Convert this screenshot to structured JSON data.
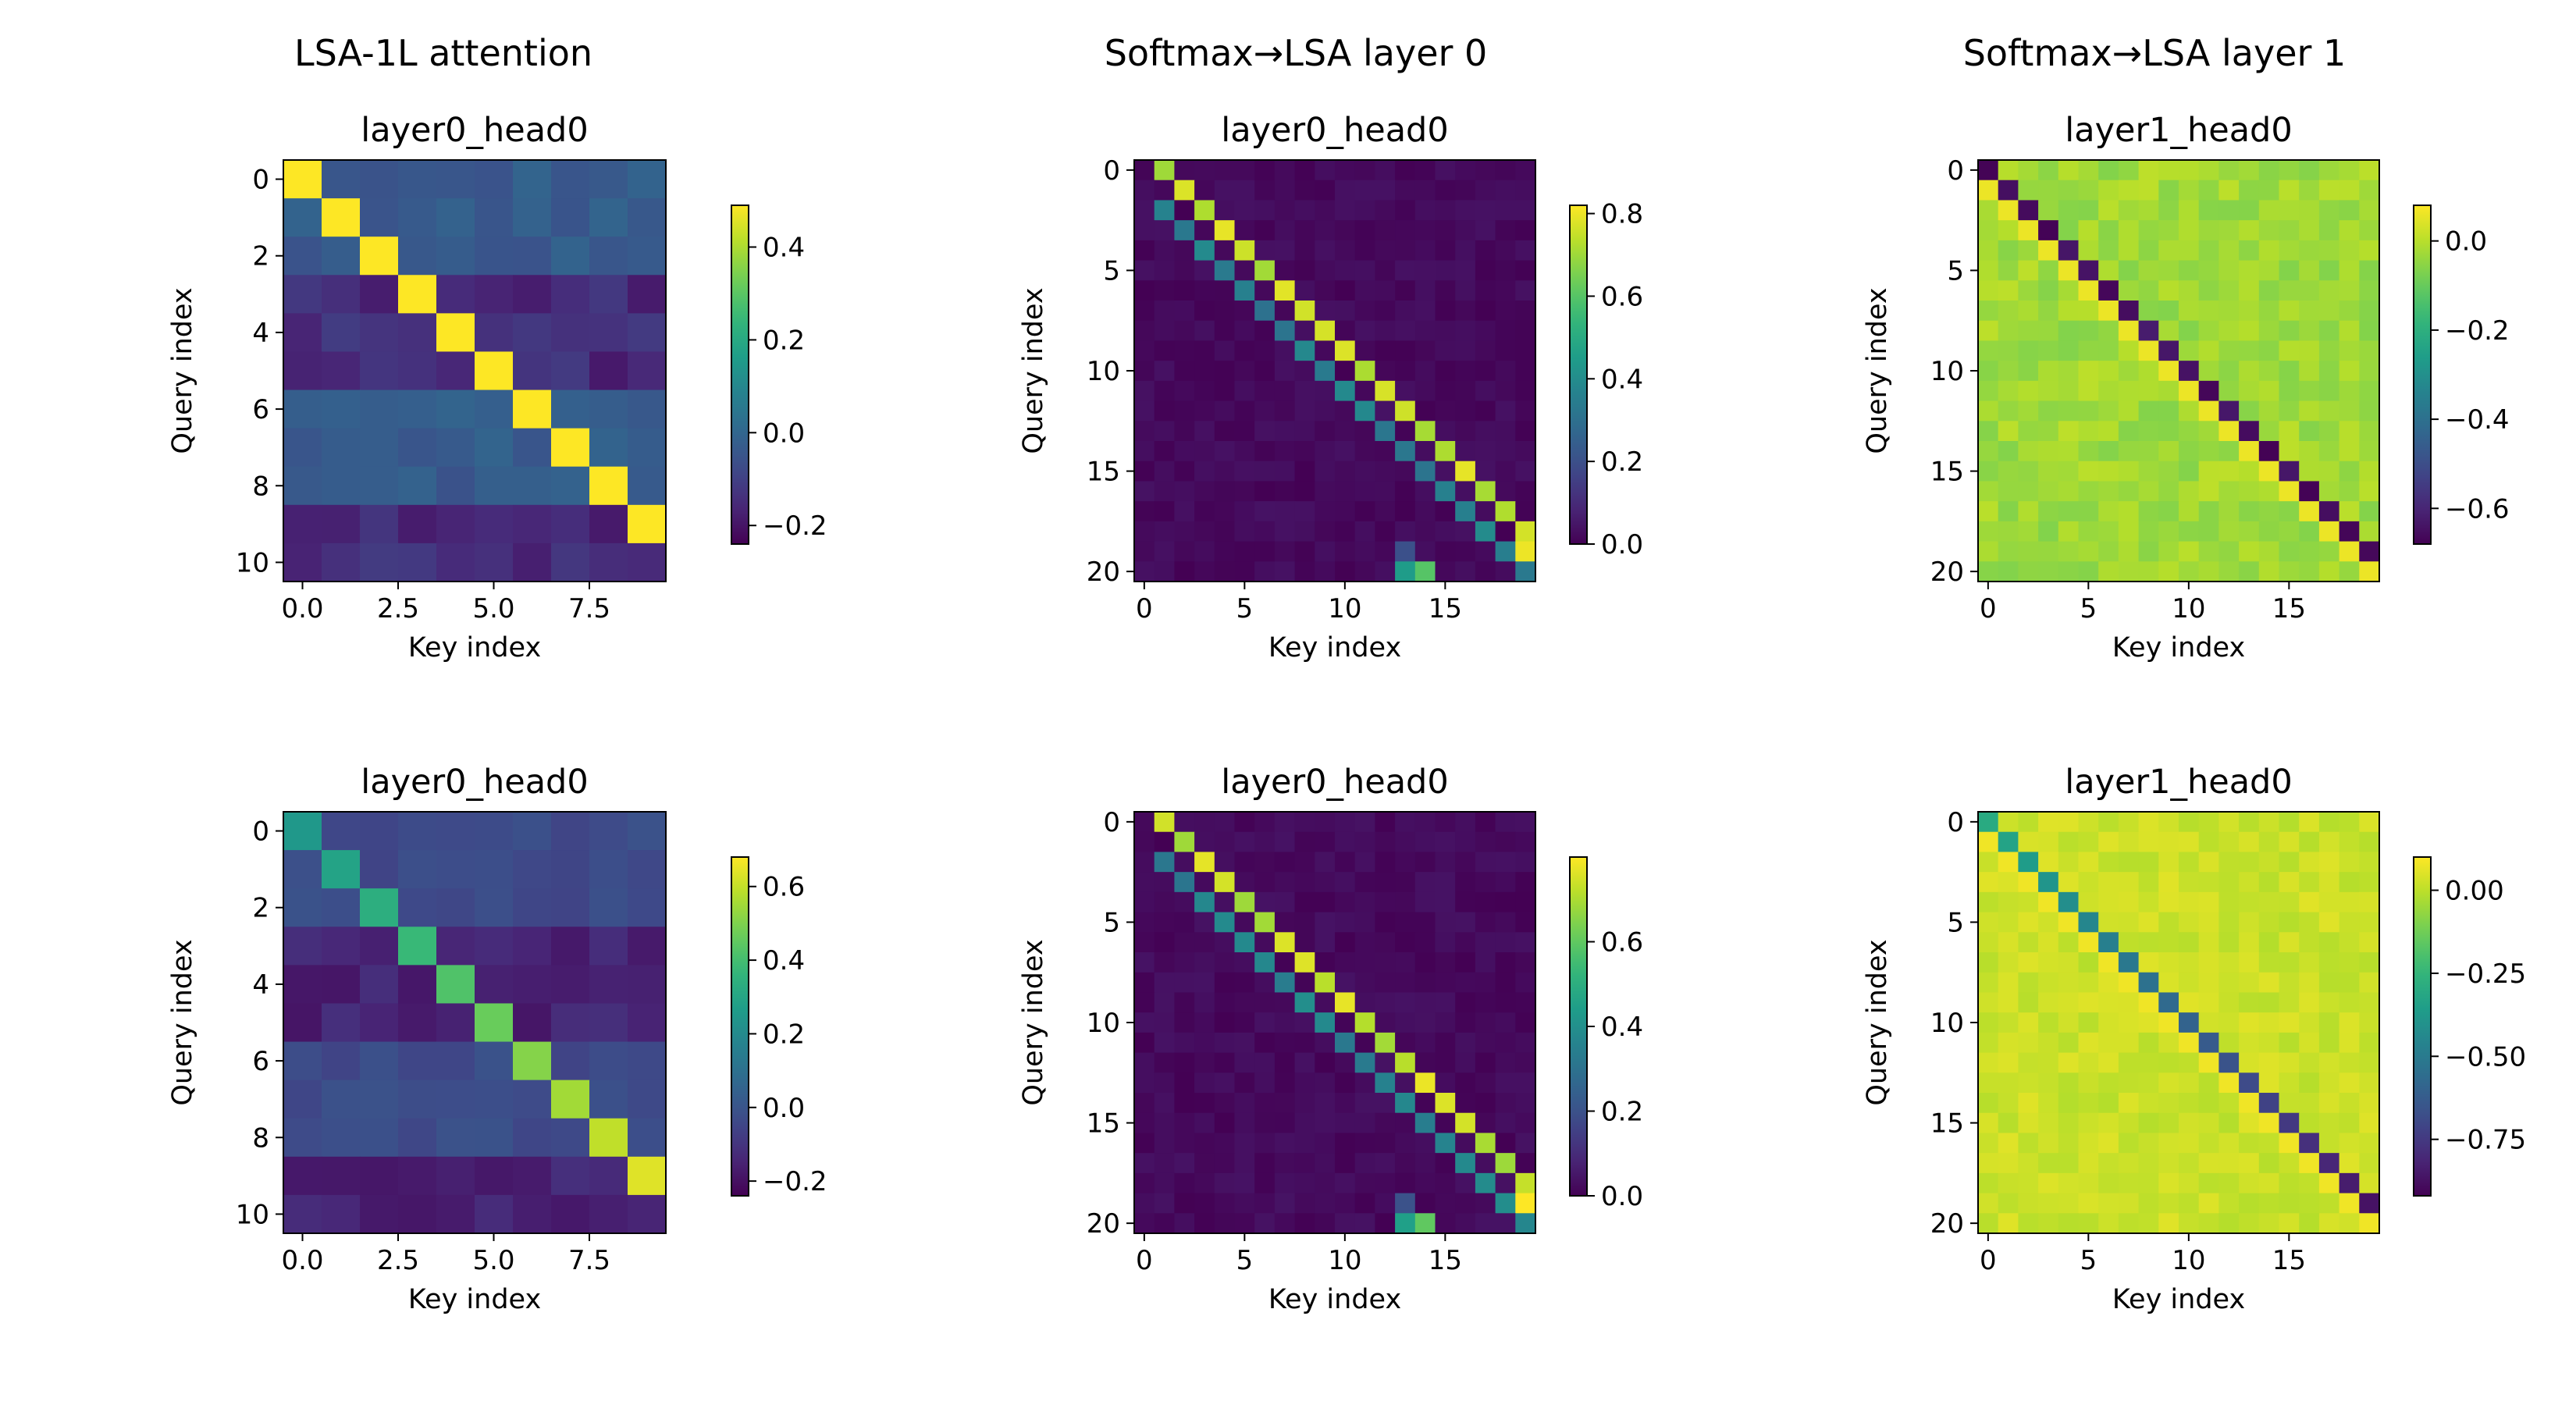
{
  "column_titles": [
    "LSA-1L attention",
    "Softmax→LSA layer 0",
    "Softmax→LSA layer 1"
  ],
  "chart_data": [
    {
      "type": "heatmap",
      "title": "layer0_head0",
      "xlabel": "Key index",
      "ylabel": "Query index",
      "rows": 11,
      "cols": 10,
      "xticks": [
        {
          "v": 0,
          "label": "0.0"
        },
        {
          "v": 2.5,
          "label": "2.5"
        },
        {
          "v": 5,
          "label": "5.0"
        },
        {
          "v": 7.5,
          "label": "7.5"
        }
      ],
      "yticks": [
        {
          "v": 0,
          "label": "0"
        },
        {
          "v": 2,
          "label": "2"
        },
        {
          "v": 4,
          "label": "4"
        },
        {
          "v": 6,
          "label": "6"
        },
        {
          "v": 8,
          "label": "8"
        },
        {
          "v": 10,
          "label": "10"
        }
      ],
      "vmin": -0.24,
      "vmax": 0.49,
      "cbar_ticks": [
        {
          "v": 0.4,
          "label": "0.4"
        },
        {
          "v": 0.2,
          "label": "0.2"
        },
        {
          "v": 0.0,
          "label": "0.0"
        },
        {
          "v": -0.2,
          "label": "−0.2"
        }
      ],
      "colormap": "viridis",
      "pattern": {
        "kind": "diag",
        "base": -0.03,
        "diag": 0.49,
        "diag_slope": 0.0,
        "diag_offset": 0,
        "dark_rows": [
          3,
          4,
          5,
          9,
          10
        ],
        "dark_value": -0.15,
        "second": null
      }
    },
    {
      "type": "heatmap",
      "title": "layer0_head0",
      "xlabel": "Key index",
      "ylabel": "Query index",
      "rows": 21,
      "cols": 20,
      "xticks": [
        {
          "v": 0,
          "label": "0"
        },
        {
          "v": 5,
          "label": "5"
        },
        {
          "v": 10,
          "label": "10"
        },
        {
          "v": 15,
          "label": "15"
        }
      ],
      "yticks": [
        {
          "v": 0,
          "label": "0"
        },
        {
          "v": 5,
          "label": "5"
        },
        {
          "v": 10,
          "label": "10"
        },
        {
          "v": 15,
          "label": "15"
        },
        {
          "v": 20,
          "label": "20"
        }
      ],
      "vmin": 0.0,
      "vmax": 0.82,
      "cbar_ticks": [
        {
          "v": 0.8,
          "label": "0.8"
        },
        {
          "v": 0.6,
          "label": "0.6"
        },
        {
          "v": 0.4,
          "label": "0.4"
        },
        {
          "v": 0.2,
          "label": "0.2"
        },
        {
          "v": 0.0,
          "label": "0.0"
        }
      ],
      "colormap": "viridis",
      "pattern": {
        "kind": "softmax",
        "base": 0.0,
        "diag": 0.8,
        "diag_offset": 1,
        "second": 0.3,
        "second_offset": -1
      }
    },
    {
      "type": "heatmap",
      "title": "layer1_head0",
      "xlabel": "Key index",
      "ylabel": "Query index",
      "rows": 21,
      "cols": 20,
      "xticks": [
        {
          "v": 0,
          "label": "0"
        },
        {
          "v": 5,
          "label": "5"
        },
        {
          "v": 10,
          "label": "10"
        },
        {
          "v": 15,
          "label": "15"
        }
      ],
      "yticks": [
        {
          "v": 0,
          "label": "0"
        },
        {
          "v": 5,
          "label": "5"
        },
        {
          "v": 10,
          "label": "10"
        },
        {
          "v": 15,
          "label": "15"
        },
        {
          "v": 20,
          "label": "20"
        }
      ],
      "vmin": -0.68,
      "vmax": 0.08,
      "cbar_ticks": [
        {
          "v": 0.0,
          "label": "0.0"
        },
        {
          "v": -0.2,
          "label": "−0.2"
        },
        {
          "v": -0.4,
          "label": "−0.4"
        },
        {
          "v": -0.6,
          "label": "−0.6"
        }
      ],
      "colormap": "viridis",
      "pattern": {
        "kind": "lsa1",
        "base": -0.03,
        "diag": -0.68,
        "diag_offset": 0,
        "second": 0.06,
        "second_offset": -1
      }
    },
    {
      "type": "heatmap",
      "title": "layer0_head0",
      "xlabel": "Key index",
      "ylabel": "Query index",
      "rows": 11,
      "cols": 10,
      "xticks": [
        {
          "v": 0,
          "label": "0.0"
        },
        {
          "v": 2.5,
          "label": "2.5"
        },
        {
          "v": 5,
          "label": "5.0"
        },
        {
          "v": 7.5,
          "label": "7.5"
        }
      ],
      "yticks": [
        {
          "v": 0,
          "label": "0"
        },
        {
          "v": 2,
          "label": "2"
        },
        {
          "v": 4,
          "label": "4"
        },
        {
          "v": 6,
          "label": "6"
        },
        {
          "v": 8,
          "label": "8"
        },
        {
          "v": 10,
          "label": "10"
        }
      ],
      "vmin": -0.24,
      "vmax": 0.68,
      "cbar_ticks": [
        {
          "v": 0.6,
          "label": "0.6"
        },
        {
          "v": 0.4,
          "label": "0.4"
        },
        {
          "v": 0.2,
          "label": "0.2"
        },
        {
          "v": 0.0,
          "label": "0.0"
        },
        {
          "v": -0.2,
          "label": "−0.2"
        }
      ],
      "colormap": "viridis",
      "pattern": {
        "kind": "diag",
        "base": -0.03,
        "diag": 0.25,
        "diag_slope": 0.043,
        "diag_offset": 0,
        "dark_rows": [
          3,
          4,
          5,
          9,
          10
        ],
        "dark_value": -0.15,
        "second": null
      }
    },
    {
      "type": "heatmap",
      "title": "layer0_head0",
      "xlabel": "Key index",
      "ylabel": "Query index",
      "rows": 21,
      "cols": 20,
      "xticks": [
        {
          "v": 0,
          "label": "0"
        },
        {
          "v": 5,
          "label": "5"
        },
        {
          "v": 10,
          "label": "10"
        },
        {
          "v": 15,
          "label": "15"
        }
      ],
      "yticks": [
        {
          "v": 0,
          "label": "0"
        },
        {
          "v": 5,
          "label": "5"
        },
        {
          "v": 10,
          "label": "10"
        },
        {
          "v": 15,
          "label": "15"
        },
        {
          "v": 20,
          "label": "20"
        }
      ],
      "vmin": 0.0,
      "vmax": 0.8,
      "cbar_ticks": [
        {
          "v": 0.6,
          "label": "0.6"
        },
        {
          "v": 0.4,
          "label": "0.4"
        },
        {
          "v": 0.2,
          "label": "0.2"
        },
        {
          "v": 0.0,
          "label": "0.0"
        }
      ],
      "colormap": "viridis",
      "pattern": {
        "kind": "softmax",
        "base": 0.0,
        "diag": 0.78,
        "diag_offset": 1,
        "second": 0.3,
        "second_offset": -1
      }
    },
    {
      "type": "heatmap",
      "title": "layer1_head0",
      "xlabel": "Key index",
      "ylabel": "Query index",
      "rows": 21,
      "cols": 20,
      "xticks": [
        {
          "v": 0,
          "label": "0"
        },
        {
          "v": 5,
          "label": "5"
        },
        {
          "v": 10,
          "label": "10"
        },
        {
          "v": 15,
          "label": "15"
        }
      ],
      "yticks": [
        {
          "v": 0,
          "label": "0"
        },
        {
          "v": 5,
          "label": "5"
        },
        {
          "v": 10,
          "label": "10"
        },
        {
          "v": 15,
          "label": "15"
        },
        {
          "v": 20,
          "label": "20"
        }
      ],
      "vmin": -0.92,
      "vmax": 0.1,
      "cbar_ticks": [
        {
          "v": 0.0,
          "label": "0.00"
        },
        {
          "v": -0.25,
          "label": "−0.25"
        },
        {
          "v": -0.5,
          "label": "−0.50"
        },
        {
          "v": -0.75,
          "label": "−0.75"
        }
      ],
      "colormap": "viridis",
      "pattern": {
        "kind": "lsa1b",
        "base": 0.02,
        "diag": -0.3,
        "diag_offset": 0,
        "second": 0.08,
        "second_offset": -1
      }
    }
  ]
}
